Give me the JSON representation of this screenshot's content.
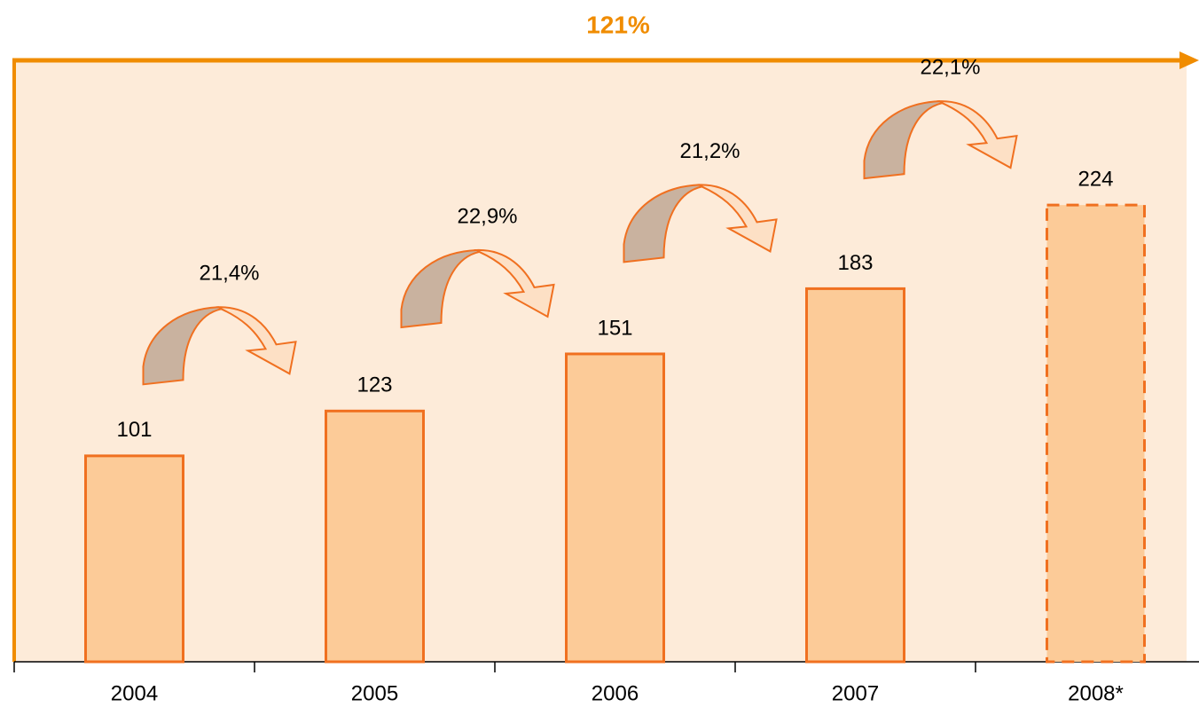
{
  "chart_data": {
    "type": "bar",
    "total_growth": "121%",
    "categories": [
      "2004",
      "2005",
      "2006",
      "2007",
      "2008*"
    ],
    "values": [
      101,
      123,
      151,
      183,
      224
    ],
    "growth_labels": [
      "21,4%",
      "22,9%",
      "21,2%",
      "22,1%"
    ],
    "bar_styles": [
      "solid",
      "solid",
      "solid",
      "solid",
      "dashed"
    ],
    "color": "#fccb98",
    "edge_color": "#f07020",
    "ylim": [
      0,
      295
    ]
  }
}
